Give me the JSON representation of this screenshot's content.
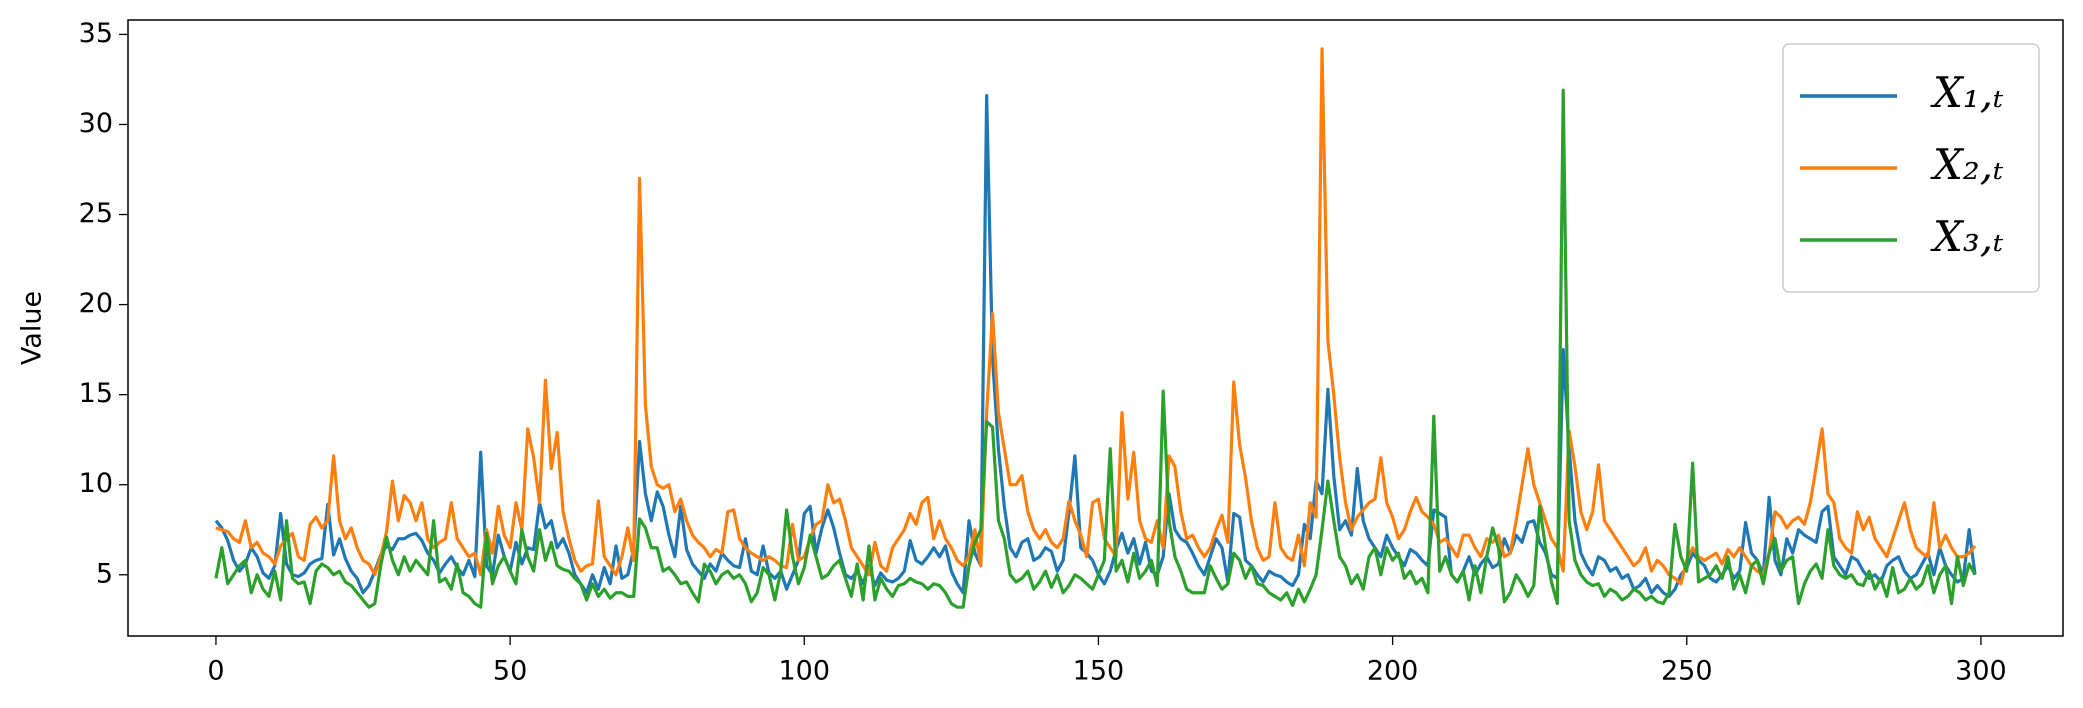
{
  "chart_data": {
    "type": "line",
    "ylabel": "Value",
    "x": [
      0,
      1,
      2,
      3,
      4,
      5,
      6,
      7,
      8,
      9,
      10,
      11,
      12,
      13,
      14,
      15,
      16,
      17,
      18,
      19,
      20,
      21,
      22,
      23,
      24,
      25,
      26,
      27,
      28,
      29,
      30,
      31,
      32,
      33,
      34,
      35,
      36,
      37,
      38,
      39,
      40,
      41,
      42,
      43,
      44,
      45,
      46,
      47,
      48,
      49,
      50,
      51,
      52,
      53,
      54,
      55,
      56,
      57,
      58,
      59,
      60,
      61,
      62,
      63,
      64,
      65,
      66,
      67,
      68,
      69,
      70,
      71,
      72,
      73,
      74,
      75,
      76,
      77,
      78,
      79,
      80,
      81,
      82,
      83,
      84,
      85,
      86,
      87,
      88,
      89,
      90,
      91,
      92,
      93,
      94,
      95,
      96,
      97,
      98,
      99,
      100,
      101,
      102,
      103,
      104,
      105,
      106,
      107,
      108,
      109,
      110,
      111,
      112,
      113,
      114,
      115,
      116,
      117,
      118,
      119,
      120,
      121,
      122,
      123,
      124,
      125,
      126,
      127,
      128,
      129,
      130,
      131,
      132,
      133,
      134,
      135,
      136,
      137,
      138,
      139,
      140,
      141,
      142,
      143,
      144,
      145,
      146,
      147,
      148,
      149,
      150,
      151,
      152,
      153,
      154,
      155,
      156,
      157,
      158,
      159,
      160,
      161,
      162,
      163,
      164,
      165,
      166,
      167,
      168,
      169,
      170,
      171,
      172,
      173,
      174,
      175,
      176,
      177,
      178,
      179,
      180,
      181,
      182,
      183,
      184,
      185,
      186,
      187,
      188,
      189,
      190,
      191,
      192,
      193,
      194,
      195,
      196,
      197,
      198,
      199,
      200,
      201,
      202,
      203,
      204,
      205,
      206,
      207,
      208,
      209,
      210,
      211,
      212,
      213,
      214,
      215,
      216,
      217,
      218,
      219,
      220,
      221,
      222,
      223,
      224,
      225,
      226,
      227,
      228,
      229,
      230,
      231,
      232,
      233,
      234,
      235,
      236,
      237,
      238,
      239,
      240,
      241,
      242,
      243,
      244,
      245,
      246,
      247,
      248,
      249,
      250,
      251,
      252,
      253,
      254,
      255,
      256,
      257,
      258,
      259,
      260,
      261,
      262,
      263,
      264,
      265,
      266,
      267,
      268,
      269,
      270,
      271,
      272,
      273,
      274,
      275,
      276,
      277,
      278,
      279,
      280,
      281,
      282,
      283,
      284,
      285,
      286,
      287,
      288,
      289,
      290,
      291,
      292,
      293,
      294,
      295,
      296,
      297,
      298,
      299
    ],
    "series": [
      {
        "name": "X₁,ₜ",
        "color": "#1f77b4",
        "values": [
          8.0,
          7.6,
          6.9,
          5.8,
          5.2,
          5.6,
          6.5,
          6.0,
          5.1,
          4.8,
          5.5,
          8.4,
          5.6,
          5.0,
          4.9,
          5.1,
          5.6,
          5.8,
          5.9,
          8.9,
          6.1,
          7.0,
          5.9,
          5.2,
          4.8,
          4.0,
          4.4,
          5.2,
          6.1,
          6.6,
          6.4,
          7.0,
          7.0,
          7.2,
          7.3,
          6.9,
          6.2,
          5.8,
          5.1,
          5.6,
          6.0,
          5.4,
          5.0,
          5.8,
          4.9,
          11.8,
          5.5,
          5.0,
          7.2,
          6.0,
          5.2,
          6.8,
          5.6,
          6.5,
          6.4,
          9.0,
          7.6,
          8.0,
          6.5,
          7.0,
          6.2,
          5.0,
          4.5,
          4.0,
          5.0,
          4.2,
          5.4,
          4.5,
          6.6,
          4.8,
          5.0,
          6.4,
          12.4,
          9.5,
          8.0,
          9.6,
          8.8,
          7.2,
          6.0,
          8.8,
          6.4,
          5.6,
          5.2,
          4.8,
          5.6,
          5.2,
          6.2,
          5.8,
          5.5,
          5.4,
          7.0,
          5.2,
          5.0,
          6.6,
          5.1,
          4.8,
          5.2,
          4.2,
          5.0,
          5.8,
          8.4,
          8.8,
          6.2,
          7.6,
          8.6,
          7.6,
          6.2,
          5.0,
          4.8,
          5.2,
          4.5,
          5.5,
          4.4,
          5.1,
          4.7,
          4.6,
          4.8,
          5.2,
          6.9,
          5.8,
          5.6,
          6.0,
          6.5,
          6.0,
          6.6,
          5.2,
          4.5,
          4.0,
          8.0,
          6.2,
          5.5,
          31.6,
          17.0,
          12.0,
          8.8,
          6.5,
          6.0,
          6.8,
          7.0,
          5.8,
          6.0,
          6.5,
          6.3,
          5.2,
          5.8,
          8.5,
          11.6,
          6.5,
          6.2,
          5.8,
          5.0,
          4.5,
          5.2,
          6.4,
          7.3,
          6.2,
          7.0,
          5.6,
          6.8,
          5.2,
          5.0,
          6.0,
          9.5,
          7.5,
          7.0,
          6.8,
          6.2,
          5.5,
          5.0,
          6.0,
          7.0,
          6.5,
          4.6,
          8.4,
          8.2,
          5.8,
          5.5,
          5.0,
          4.6,
          5.2,
          5.0,
          4.9,
          4.6,
          4.4,
          5.0,
          7.8,
          7.0,
          10.2,
          9.5,
          15.3,
          10.5,
          7.5,
          8.0,
          7.2,
          10.9,
          8.0,
          7.0,
          6.5,
          6.0,
          7.2,
          6.5,
          6.0,
          5.5,
          6.4,
          6.2,
          5.8,
          5.5,
          8.6,
          8.4,
          8.2,
          5.0,
          4.6,
          5.2,
          6.0,
          5.0,
          5.6,
          6.0,
          5.4,
          5.6,
          7.0,
          6.2,
          7.2,
          6.8,
          7.9,
          8.0,
          6.8,
          6.2,
          5.0,
          4.8,
          17.5,
          12.0,
          8.0,
          6.2,
          5.5,
          5.0,
          6.0,
          5.8,
          5.2,
          5.4,
          4.8,
          5.0,
          4.2,
          4.4,
          4.8,
          4.0,
          4.4,
          4.0,
          3.8,
          4.2,
          5.0,
          5.4,
          6.2,
          5.8,
          5.5,
          4.8,
          4.6,
          5.0,
          5.5,
          4.8,
          5.2,
          7.9,
          6.2,
          5.8,
          5.0,
          9.3,
          5.8,
          5.0,
          7.0,
          6.2,
          7.5,
          7.2,
          7.0,
          6.8,
          8.5,
          8.8,
          6.0,
          5.5,
          5.0,
          6.0,
          5.8,
          5.2,
          4.8,
          5.0,
          4.6,
          5.5,
          5.8,
          6.0,
          5.2,
          4.8,
          5.0,
          5.6,
          6.2,
          5.0,
          6.5,
          5.5,
          5.0,
          4.6,
          4.8,
          7.5,
          5.0
        ]
      },
      {
        "name": "X₂,ₜ",
        "color": "#ff7f0e",
        "values": [
          7.6,
          7.5,
          7.4,
          7.0,
          6.8,
          8.0,
          6.5,
          6.8,
          6.2,
          6.0,
          5.6,
          6.6,
          7.0,
          7.3,
          6.0,
          5.8,
          7.8,
          8.2,
          7.6,
          8.0,
          11.6,
          8.0,
          7.0,
          7.6,
          6.5,
          5.8,
          5.6,
          5.0,
          6.0,
          7.4,
          10.2,
          8.0,
          9.4,
          9.0,
          8.0,
          9.0,
          7.0,
          6.5,
          6.8,
          7.0,
          9.0,
          7.0,
          6.5,
          6.0,
          6.2,
          5.0,
          7.5,
          6.2,
          8.8,
          7.2,
          6.5,
          9.0,
          7.5,
          13.1,
          11.5,
          9.0,
          15.8,
          10.9,
          12.9,
          8.5,
          7.0,
          5.8,
          5.2,
          5.5,
          5.6,
          9.1,
          6.0,
          5.5,
          5.0,
          6.0,
          7.6,
          5.8,
          27.0,
          14.4,
          11.0,
          10.0,
          9.8,
          10.0,
          8.5,
          9.2,
          8.0,
          7.2,
          6.8,
          6.5,
          6.0,
          6.4,
          6.2,
          8.5,
          8.6,
          7.0,
          6.5,
          6.2,
          6.0,
          5.8,
          6.0,
          5.8,
          5.5,
          5.4,
          7.8,
          5.8,
          6.0,
          7.0,
          7.8,
          8.0,
          10.0,
          9.0,
          9.2,
          8.0,
          6.5,
          6.0,
          5.5,
          5.0,
          6.8,
          5.5,
          5.2,
          6.5,
          7.0,
          7.5,
          8.4,
          7.8,
          9.0,
          9.3,
          7.0,
          8.0,
          7.0,
          6.5,
          5.8,
          5.5,
          6.0,
          7.5,
          5.5,
          14.0,
          19.5,
          14.0,
          12.0,
          10.0,
          10.0,
          10.5,
          8.5,
          7.5,
          7.0,
          7.5,
          6.8,
          6.5,
          7.0,
          9.1,
          8.0,
          7.2,
          6.0,
          9.0,
          9.2,
          7.0,
          6.5,
          6.0,
          14.0,
          9.2,
          11.8,
          8.0,
          7.0,
          6.8,
          8.0,
          6.5,
          11.6,
          11.0,
          8.5,
          7.0,
          7.2,
          6.5,
          6.0,
          6.5,
          7.5,
          8.3,
          6.8,
          15.7,
          12.2,
          10.4,
          8.0,
          6.5,
          5.8,
          6.0,
          9.0,
          6.5,
          6.0,
          5.8,
          7.2,
          5.5,
          9.0,
          8.2,
          34.2,
          18.0,
          15.0,
          11.5,
          9.0,
          7.5,
          8.2,
          8.6,
          9.0,
          9.2,
          11.5,
          9.0,
          8.2,
          7.0,
          7.5,
          8.5,
          9.3,
          8.5,
          8.2,
          7.8,
          6.8,
          7.0,
          6.5,
          6.0,
          7.2,
          7.2,
          6.5,
          6.0,
          7.0,
          6.8,
          7.2,
          6.0,
          6.2,
          8.0,
          10.0,
          12.0,
          10.0,
          9.0,
          8.0,
          7.0,
          6.5,
          5.2,
          13.0,
          11.0,
          8.5,
          7.5,
          8.5,
          11.1,
          8.0,
          7.5,
          7.0,
          6.5,
          6.0,
          5.5,
          5.8,
          6.5,
          5.2,
          5.8,
          5.5,
          5.0,
          4.8,
          4.5,
          5.8,
          6.5,
          6.0,
          5.8,
          6.0,
          6.2,
          5.6,
          6.4,
          6.0,
          6.5,
          6.0,
          5.5,
          5.2,
          5.0,
          6.2,
          8.5,
          8.2,
          7.6,
          8.0,
          8.2,
          7.8,
          9.0,
          11.0,
          13.1,
          9.5,
          9.0,
          7.0,
          6.5,
          6.2,
          8.5,
          7.5,
          8.2,
          7.0,
          6.5,
          6.0,
          7.0,
          8.0,
          9.0,
          7.5,
          6.5,
          6.2,
          6.0,
          9.0,
          6.5,
          7.2,
          6.5,
          6.0,
          6.0,
          6.2,
          6.6
        ]
      },
      {
        "name": "X₃,ₜ",
        "color": "#2ca02c",
        "values": [
          4.8,
          6.5,
          4.5,
          5.0,
          5.5,
          5.8,
          4.0,
          5.0,
          4.2,
          3.8,
          5.2,
          3.6,
          8.0,
          4.8,
          4.5,
          4.6,
          3.4,
          5.2,
          5.6,
          5.4,
          5.0,
          5.2,
          4.6,
          4.4,
          4.0,
          3.6,
          3.2,
          3.4,
          5.5,
          7.1,
          5.8,
          5.0,
          6.0,
          5.2,
          5.8,
          5.4,
          5.0,
          8.0,
          4.6,
          4.8,
          4.2,
          5.6,
          4.0,
          3.8,
          3.4,
          3.2,
          7.3,
          4.5,
          5.5,
          6.0,
          5.2,
          4.5,
          7.5,
          6.0,
          5.2,
          7.5,
          5.8,
          6.8,
          5.5,
          5.3,
          5.2,
          4.8,
          4.5,
          3.6,
          4.5,
          3.8,
          4.2,
          3.7,
          4.0,
          4.0,
          3.8,
          3.8,
          8.1,
          7.6,
          6.5,
          6.5,
          5.2,
          5.4,
          5.0,
          4.5,
          4.6,
          4.0,
          3.5,
          5.6,
          5.2,
          4.5,
          5.0,
          5.2,
          4.8,
          5.0,
          4.5,
          3.5,
          4.0,
          5.4,
          5.0,
          3.6,
          5.2,
          8.6,
          6.0,
          4.5,
          5.4,
          7.2,
          6.0,
          4.8,
          5.0,
          5.5,
          5.8,
          4.8,
          3.8,
          5.6,
          3.6,
          6.6,
          3.6,
          4.8,
          4.2,
          3.8,
          4.4,
          4.5,
          4.8,
          4.6,
          4.5,
          4.2,
          4.5,
          4.4,
          4.0,
          3.4,
          3.2,
          3.2,
          5.5,
          6.8,
          7.5,
          13.5,
          13.2,
          8.0,
          7.0,
          5.0,
          4.6,
          4.8,
          5.2,
          4.2,
          4.6,
          5.2,
          4.3,
          5.0,
          4.0,
          4.4,
          5.0,
          4.8,
          4.5,
          4.2,
          5.0,
          5.8,
          12.0,
          5.2,
          5.8,
          4.6,
          6.2,
          4.8,
          5.2,
          5.8,
          4.4,
          15.2,
          8.0,
          6.0,
          5.2,
          4.2,
          4.0,
          4.0,
          4.0,
          5.5,
          4.8,
          4.2,
          4.5,
          6.2,
          5.8,
          4.8,
          5.5,
          4.5,
          4.4,
          4.0,
          3.8,
          3.6,
          4.0,
          3.3,
          4.2,
          3.5,
          4.2,
          5.0,
          7.5,
          10.2,
          8.0,
          6.0,
          5.5,
          4.5,
          5.0,
          4.2,
          6.0,
          6.5,
          5.0,
          6.5,
          5.8,
          6.2,
          4.8,
          5.2,
          4.5,
          4.8,
          4.0,
          13.8,
          5.2,
          6.0,
          5.0,
          4.6,
          5.2,
          3.6,
          5.5,
          4.0,
          6.0,
          7.6,
          6.5,
          3.5,
          4.0,
          5.0,
          4.5,
          3.8,
          4.4,
          8.8,
          6.5,
          4.6,
          3.4,
          31.9,
          8.0,
          5.8,
          5.0,
          4.6,
          4.4,
          4.5,
          3.8,
          4.2,
          4.0,
          3.6,
          3.8,
          4.2,
          4.0,
          3.6,
          3.8,
          3.5,
          3.4,
          4.0,
          7.8,
          6.0,
          5.2,
          11.2,
          4.6,
          4.8,
          5.0,
          5.5,
          4.8,
          6.0,
          4.2,
          5.0,
          4.0,
          5.5,
          5.8,
          4.5,
          6.2,
          7.0,
          5.2,
          5.8,
          6.0,
          3.4,
          4.5,
          5.2,
          5.6,
          4.8,
          7.5,
          5.5,
          5.0,
          4.8,
          5.0,
          4.5,
          4.4,
          5.2,
          4.2,
          4.8,
          3.8,
          5.4,
          4.0,
          4.2,
          4.8,
          4.2,
          4.5,
          5.5,
          4.0,
          5.0,
          5.5,
          3.4,
          6.0,
          4.4,
          5.6,
          5.0
        ]
      }
    ],
    "xlim": [
      -14.95,
      313.95
    ],
    "xticks": [
      0,
      50,
      100,
      150,
      200,
      250,
      300
    ],
    "ylim": [
      1.6,
      35.8
    ],
    "yticks": [
      5,
      10,
      15,
      20,
      25,
      30,
      35
    ],
    "legend": "upper right"
  }
}
